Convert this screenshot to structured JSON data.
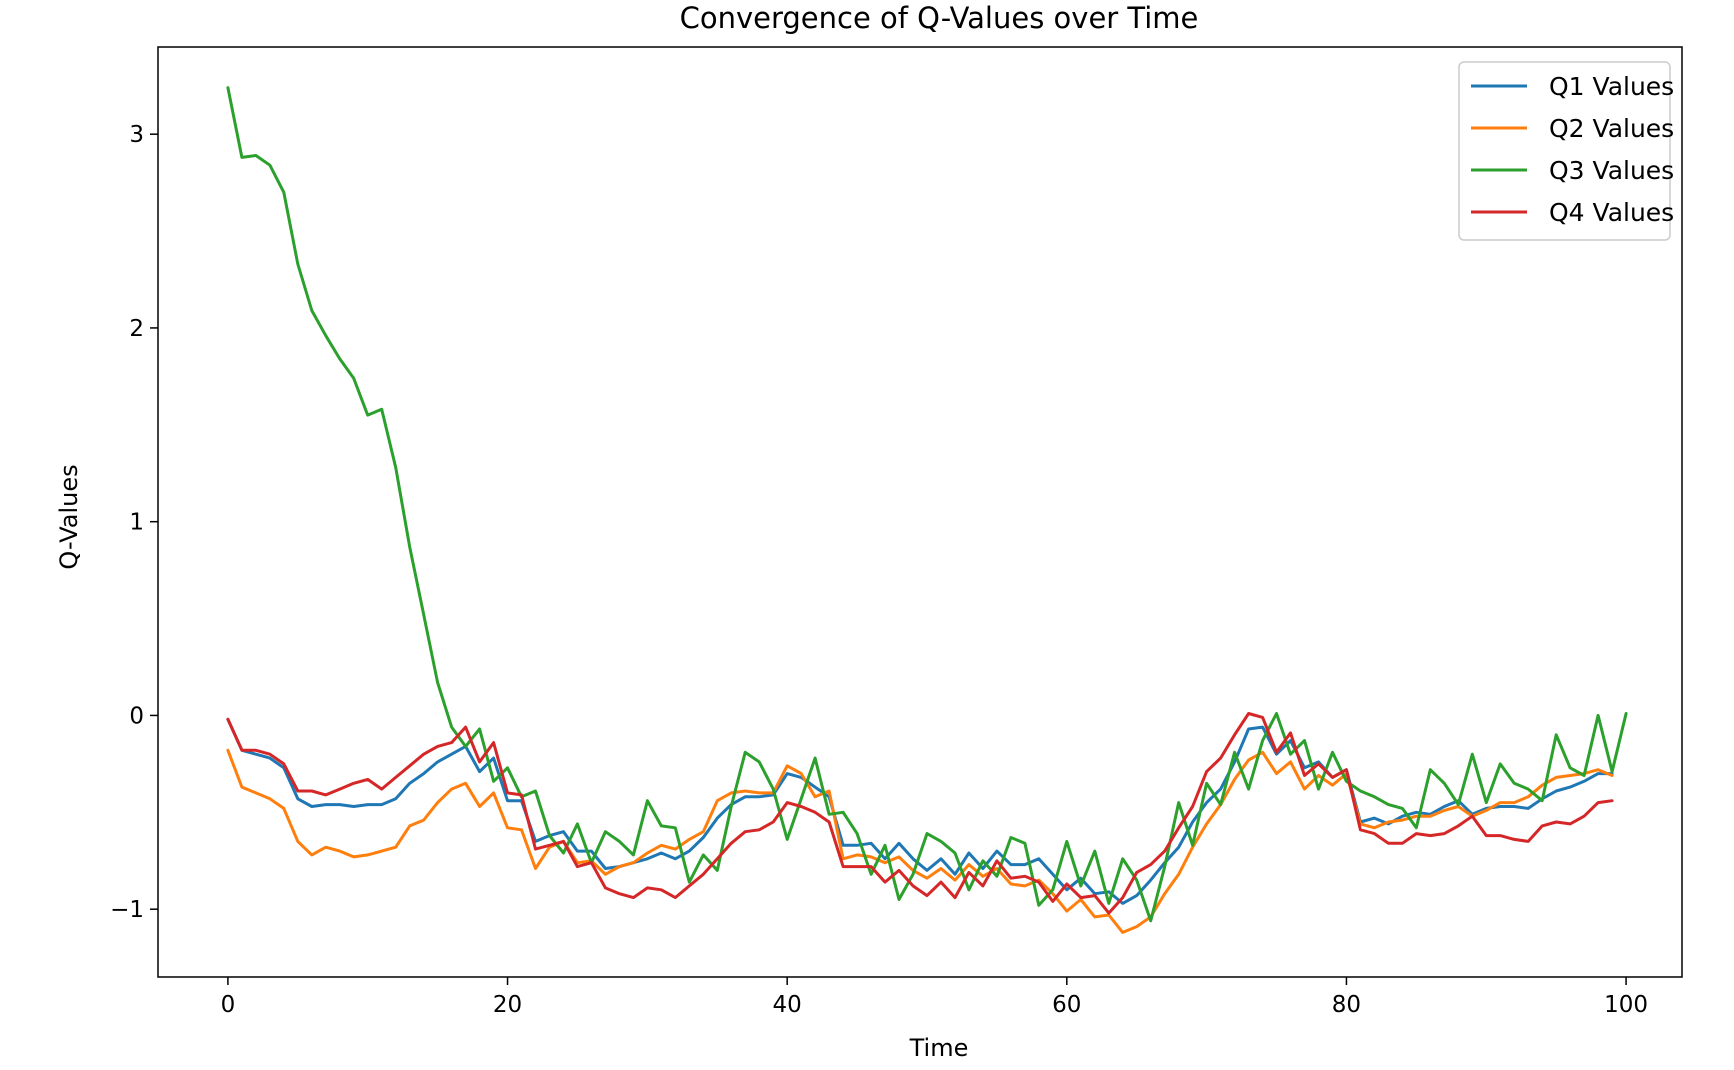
{
  "chart_data": {
    "type": "line",
    "title": "Convergence of Q-Values over Time",
    "xlabel": "Time",
    "ylabel": "Q-Values",
    "xlim": [
      -5,
      104
    ],
    "ylim": [
      -1.35,
      3.45
    ],
    "xticks": [
      0,
      20,
      40,
      60,
      80,
      100
    ],
    "yticks": [
      -1,
      0,
      1,
      2,
      3
    ],
    "xtick_labels": [
      "0",
      "20",
      "40",
      "60",
      "80",
      "100"
    ],
    "ytick_labels": [
      "−1",
      "0",
      "1",
      "2",
      "3"
    ],
    "grid": false,
    "legend_position": "top-right",
    "series": [
      {
        "name": "Q1 Values",
        "color": "#1f77b4",
        "values": [
          -0.02,
          -0.18,
          -0.2,
          -0.22,
          -0.27,
          -0.43,
          -0.47,
          -0.46,
          -0.46,
          -0.47,
          -0.46,
          -0.46,
          -0.43,
          -0.35,
          -0.3,
          -0.24,
          -0.2,
          -0.16,
          -0.29,
          -0.22,
          -0.44,
          -0.44,
          -0.65,
          -0.62,
          -0.6,
          -0.7,
          -0.7,
          -0.79,
          -0.78,
          -0.76,
          -0.74,
          -0.71,
          -0.74,
          -0.7,
          -0.63,
          -0.53,
          -0.46,
          -0.42,
          -0.42,
          -0.41,
          -0.3,
          -0.32,
          -0.37,
          -0.42,
          -0.67,
          -0.67,
          -0.66,
          -0.74,
          -0.66,
          -0.74,
          -0.8,
          -0.74,
          -0.82,
          -0.71,
          -0.79,
          -0.7,
          -0.77,
          -0.77,
          -0.74,
          -0.82,
          -0.9,
          -0.84,
          -0.92,
          -0.91,
          -0.97,
          -0.93,
          -0.85,
          -0.76,
          -0.68,
          -0.55,
          -0.45,
          -0.38,
          -0.24,
          -0.07,
          -0.06,
          -0.2,
          -0.13,
          -0.27,
          -0.24,
          -0.32,
          -0.28,
          -0.55,
          -0.53,
          -0.56,
          -0.52,
          -0.5,
          -0.51,
          -0.47,
          -0.44,
          -0.51,
          -0.48,
          -0.47,
          -0.47,
          -0.48,
          -0.43,
          -0.39,
          -0.37,
          -0.34,
          -0.3,
          -0.3
        ]
      },
      {
        "name": "Q2 Values",
        "color": "#ff7f0e",
        "values": [
          -0.18,
          -0.37,
          -0.4,
          -0.43,
          -0.48,
          -0.65,
          -0.72,
          -0.68,
          -0.7,
          -0.73,
          -0.72,
          -0.7,
          -0.68,
          -0.57,
          -0.54,
          -0.45,
          -0.38,
          -0.35,
          -0.47,
          -0.4,
          -0.58,
          -0.59,
          -0.79,
          -0.68,
          -0.65,
          -0.76,
          -0.75,
          -0.82,
          -0.78,
          -0.76,
          -0.71,
          -0.67,
          -0.69,
          -0.64,
          -0.6,
          -0.44,
          -0.4,
          -0.39,
          -0.4,
          -0.4,
          -0.26,
          -0.3,
          -0.42,
          -0.39,
          -0.74,
          -0.72,
          -0.73,
          -0.76,
          -0.73,
          -0.8,
          -0.84,
          -0.79,
          -0.85,
          -0.77,
          -0.83,
          -0.79,
          -0.87,
          -0.88,
          -0.85,
          -0.92,
          -1.01,
          -0.95,
          -1.04,
          -1.03,
          -1.12,
          -1.09,
          -1.04,
          -0.92,
          -0.82,
          -0.68,
          -0.56,
          -0.46,
          -0.33,
          -0.23,
          -0.19,
          -0.3,
          -0.24,
          -0.38,
          -0.31,
          -0.36,
          -0.3,
          -0.56,
          -0.58,
          -0.55,
          -0.54,
          -0.52,
          -0.52,
          -0.49,
          -0.47,
          -0.52,
          -0.49,
          -0.45,
          -0.45,
          -0.42,
          -0.36,
          -0.32,
          -0.31,
          -0.3,
          -0.28,
          -0.31
        ]
      },
      {
        "name": "Q3 Values",
        "color": "#2ca02c",
        "values": [
          3.24,
          2.88,
          2.89,
          2.84,
          2.7,
          2.33,
          2.09,
          1.96,
          1.84,
          1.74,
          1.55,
          1.58,
          1.28,
          0.87,
          0.52,
          0.17,
          -0.06,
          -0.16,
          -0.07,
          -0.34,
          -0.27,
          -0.42,
          -0.39,
          -0.62,
          -0.71,
          -0.56,
          -0.76,
          -0.6,
          -0.65,
          -0.72,
          -0.44,
          -0.57,
          -0.58,
          -0.86,
          -0.72,
          -0.8,
          -0.47,
          -0.19,
          -0.24,
          -0.38,
          -0.64,
          -0.43,
          -0.22,
          -0.51,
          -0.5,
          -0.61,
          -0.82,
          -0.67,
          -0.95,
          -0.82,
          -0.61,
          -0.65,
          -0.71,
          -0.9,
          -0.75,
          -0.83,
          -0.63,
          -0.66,
          -0.98,
          -0.9,
          -0.65,
          -0.88,
          -0.7,
          -0.97,
          -0.74,
          -0.85,
          -1.06,
          -0.78,
          -0.45,
          -0.67,
          -0.35,
          -0.46,
          -0.19,
          -0.38,
          -0.13,
          0.01,
          -0.2,
          -0.13,
          -0.38,
          -0.19,
          -0.34,
          -0.39,
          -0.42,
          -0.46,
          -0.48,
          -0.58,
          -0.28,
          -0.35,
          -0.46,
          -0.2,
          -0.45,
          -0.25,
          -0.35,
          -0.38,
          -0.44,
          -0.1,
          -0.27,
          -0.31,
          0.0,
          -0.29,
          0.01
        ]
      },
      {
        "name": "Q4 Values",
        "color": "#d62728",
        "values": [
          -0.02,
          -0.18,
          -0.18,
          -0.2,
          -0.25,
          -0.39,
          -0.39,
          -0.41,
          -0.38,
          -0.35,
          -0.33,
          -0.38,
          -0.32,
          -0.26,
          -0.2,
          -0.16,
          -0.14,
          -0.06,
          -0.24,
          -0.14,
          -0.4,
          -0.41,
          -0.69,
          -0.67,
          -0.65,
          -0.78,
          -0.76,
          -0.89,
          -0.92,
          -0.94,
          -0.89,
          -0.9,
          -0.94,
          -0.88,
          -0.82,
          -0.74,
          -0.66,
          -0.6,
          -0.59,
          -0.55,
          -0.45,
          -0.47,
          -0.5,
          -0.55,
          -0.78,
          -0.78,
          -0.78,
          -0.86,
          -0.8,
          -0.88,
          -0.93,
          -0.86,
          -0.94,
          -0.81,
          -0.88,
          -0.75,
          -0.84,
          -0.83,
          -0.86,
          -0.96,
          -0.87,
          -0.94,
          -0.93,
          -1.02,
          -0.94,
          -0.81,
          -0.77,
          -0.7,
          -0.58,
          -0.47,
          -0.29,
          -0.22,
          -0.1,
          0.01,
          -0.01,
          -0.19,
          -0.09,
          -0.31,
          -0.25,
          -0.32,
          -0.28,
          -0.59,
          -0.61,
          -0.66,
          -0.66,
          -0.61,
          -0.62,
          -0.61,
          -0.57,
          -0.52,
          -0.62,
          -0.62,
          -0.64,
          -0.65,
          -0.57,
          -0.55,
          -0.56,
          -0.52,
          -0.45,
          -0.44
        ]
      }
    ]
  }
}
